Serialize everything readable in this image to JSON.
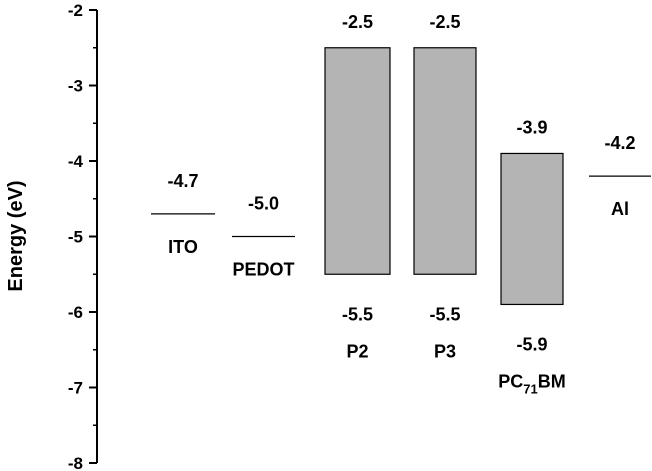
{
  "chart_data": {
    "type": "energy-level-diagram",
    "ylabel": "Energy (eV)",
    "ylim": [
      -8,
      -2
    ],
    "yticks": [
      "-2",
      "-3",
      "-4",
      "-5",
      "-6",
      "-7",
      "-8"
    ],
    "grid": false,
    "colors": {
      "bar_fill": "#b4b4b4",
      "line": "#000000",
      "axis": "#000000"
    },
    "levels": [
      {
        "label": "ITO",
        "value": -4.7,
        "value_text": "-4.7"
      },
      {
        "label": "PEDOT",
        "value": -5.0,
        "value_text": "-5.0"
      },
      {
        "label": "Al",
        "value": -4.2,
        "value_text": "-4.2"
      }
    ],
    "bands": [
      {
        "label": "P2",
        "top": -2.5,
        "bottom": -5.5,
        "top_text": "-2.5",
        "bottom_text": "-5.5"
      },
      {
        "label": "P3",
        "top": -2.5,
        "bottom": -5.5,
        "top_text": "-2.5",
        "bottom_text": "-5.5"
      },
      {
        "label_main": "PC",
        "label_sub": "71",
        "label_tail": "BM",
        "top": -3.9,
        "bottom": -5.9,
        "top_text": "-3.9",
        "bottom_text": "-5.9"
      }
    ]
  }
}
